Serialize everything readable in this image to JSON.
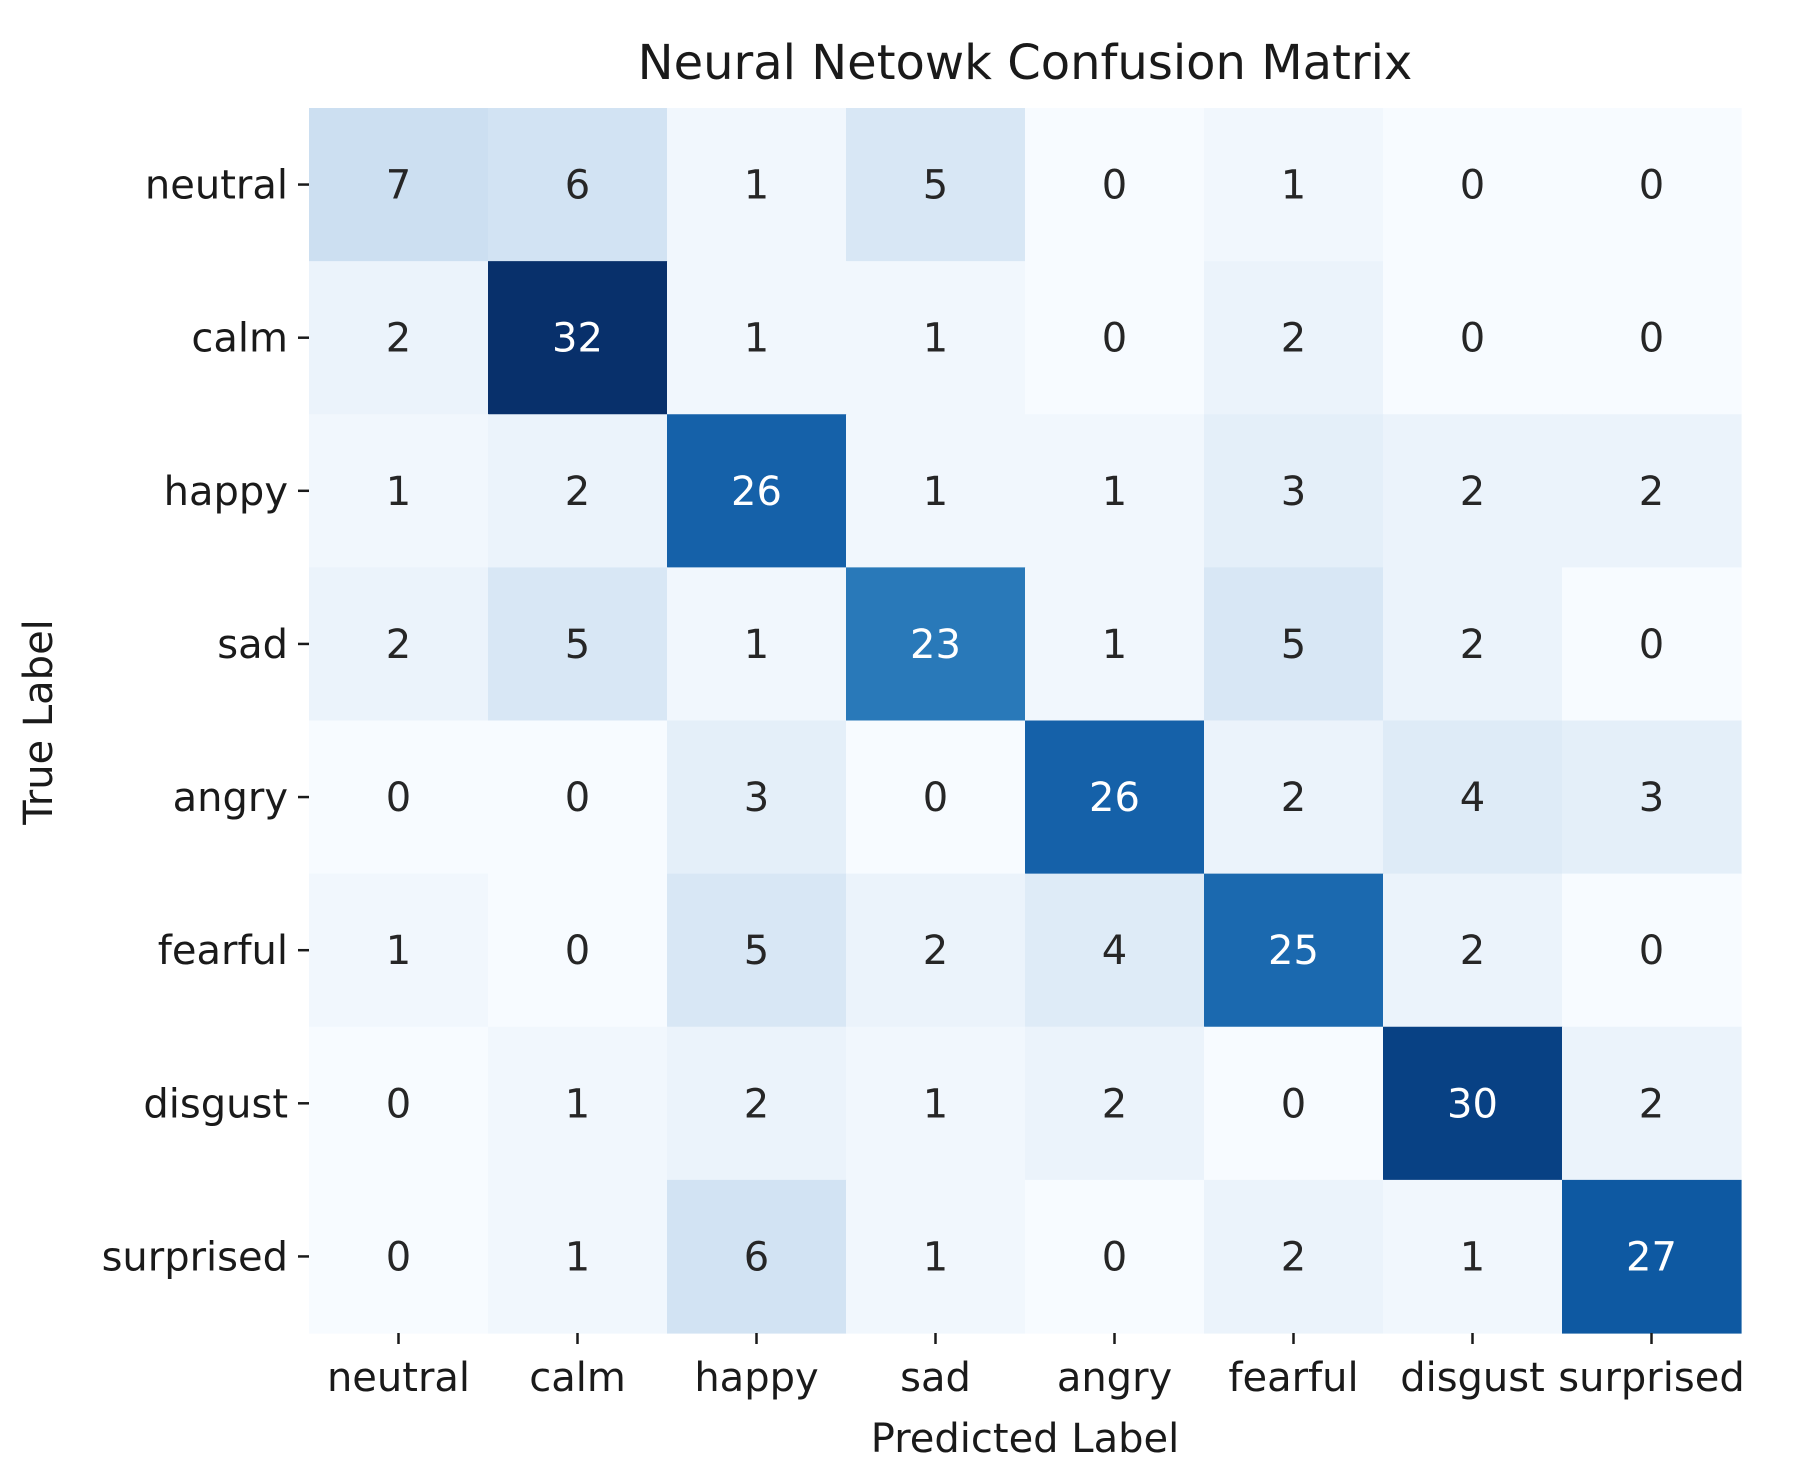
{
  "chart_data": {
    "type": "heatmap",
    "title": "Neural Netowk Confusion Matrix",
    "xlabel": "Predicted Label",
    "ylabel": "True Label",
    "x_categories": [
      "neutral",
      "calm",
      "happy",
      "sad",
      "angry",
      "fearful",
      "disgust",
      "surprised"
    ],
    "y_categories": [
      "neutral",
      "calm",
      "happy",
      "sad",
      "angry",
      "fearful",
      "disgust",
      "surprised"
    ],
    "values": [
      [
        7,
        6,
        1,
        5,
        0,
        1,
        0,
        0
      ],
      [
        2,
        32,
        1,
        1,
        0,
        2,
        0,
        0
      ],
      [
        1,
        2,
        26,
        1,
        1,
        3,
        2,
        2
      ],
      [
        2,
        5,
        1,
        23,
        1,
        5,
        2,
        0
      ],
      [
        0,
        0,
        3,
        0,
        26,
        2,
        4,
        3
      ],
      [
        1,
        0,
        5,
        2,
        4,
        25,
        2,
        0
      ],
      [
        0,
        1,
        2,
        1,
        2,
        0,
        30,
        2
      ],
      [
        0,
        1,
        6,
        1,
        0,
        2,
        1,
        27
      ]
    ],
    "vmin": 0,
    "vmax": 32,
    "colormap": "Blues",
    "colorbar": false,
    "grid": false,
    "annotations": true
  }
}
